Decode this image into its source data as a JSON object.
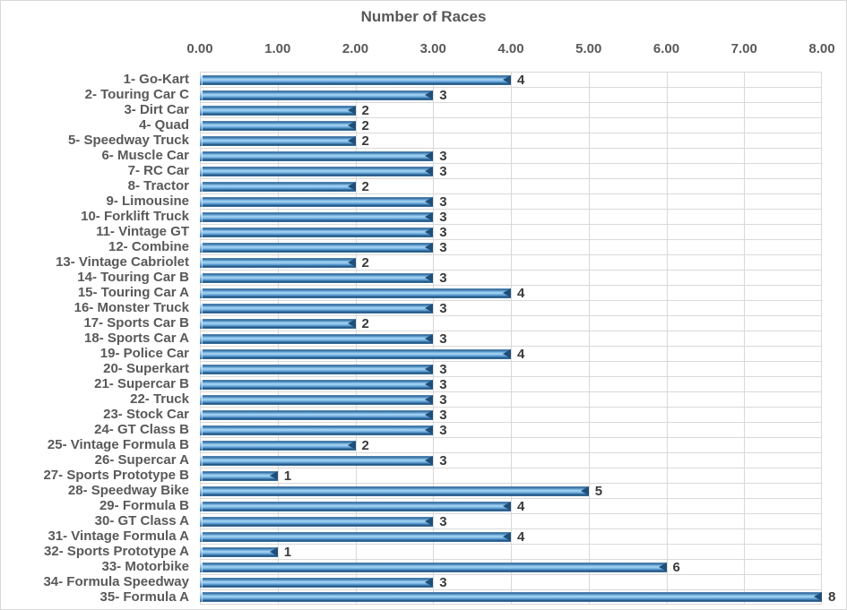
{
  "chart_data": {
    "type": "bar",
    "orientation": "horizontal",
    "title": "Number of Races",
    "categories": [
      "1- Go-Kart",
      "2- Touring Car C",
      "3- Dirt Car",
      "4- Quad",
      "5- Speedway Truck",
      "6- Muscle Car",
      "7- RC Car",
      "8- Tractor",
      "9- Limousine",
      "10- Forklift Truck",
      "11- Vintage GT",
      "12- Combine",
      "13- Vintage Cabriolet",
      "14- Touring Car B",
      "15- Touring Car A",
      "16- Monster Truck",
      "17- Sports Car B",
      "18- Sports Car A",
      "19- Police Car",
      "20- Superkart",
      "21- Supercar B",
      "22- Truck",
      "23- Stock Car",
      "24- GT Class B",
      "25- Vintage Formula B",
      "26- Supercar A",
      "27- Sports Prototype B",
      "28- Speedway Bike",
      "29- Formula B",
      "30- GT Class A",
      "31- Vintage Formula A",
      "32- Sports Prototype A",
      "33- Motorbike",
      "34- Formula Speedway",
      "35- Formula A"
    ],
    "values": [
      4,
      3,
      2,
      2,
      2,
      3,
      3,
      2,
      3,
      3,
      3,
      3,
      2,
      3,
      4,
      3,
      2,
      3,
      4,
      3,
      3,
      3,
      3,
      3,
      2,
      3,
      1,
      5,
      4,
      3,
      4,
      1,
      6,
      3,
      8
    ],
    "xlabel": "",
    "ylabel": "",
    "xlim": [
      0,
      8
    ],
    "xtick_labels": [
      "0.00",
      "1.00",
      "2.00",
      "3.00",
      "4.00",
      "5.00",
      "6.00",
      "7.00",
      "8.00"
    ],
    "grid": true,
    "legend_position": "none",
    "value_labels_shown": true,
    "colors": {
      "bar-light": "#a6d6f5",
      "bar-mid": "#5b9bd5",
      "bar-dark": "#1f4e79",
      "bar-edge": "#2d6090",
      "grid-line": "#d9d9d9",
      "axis-text": "#595959",
      "value-text": "#3a3a3a"
    }
  }
}
